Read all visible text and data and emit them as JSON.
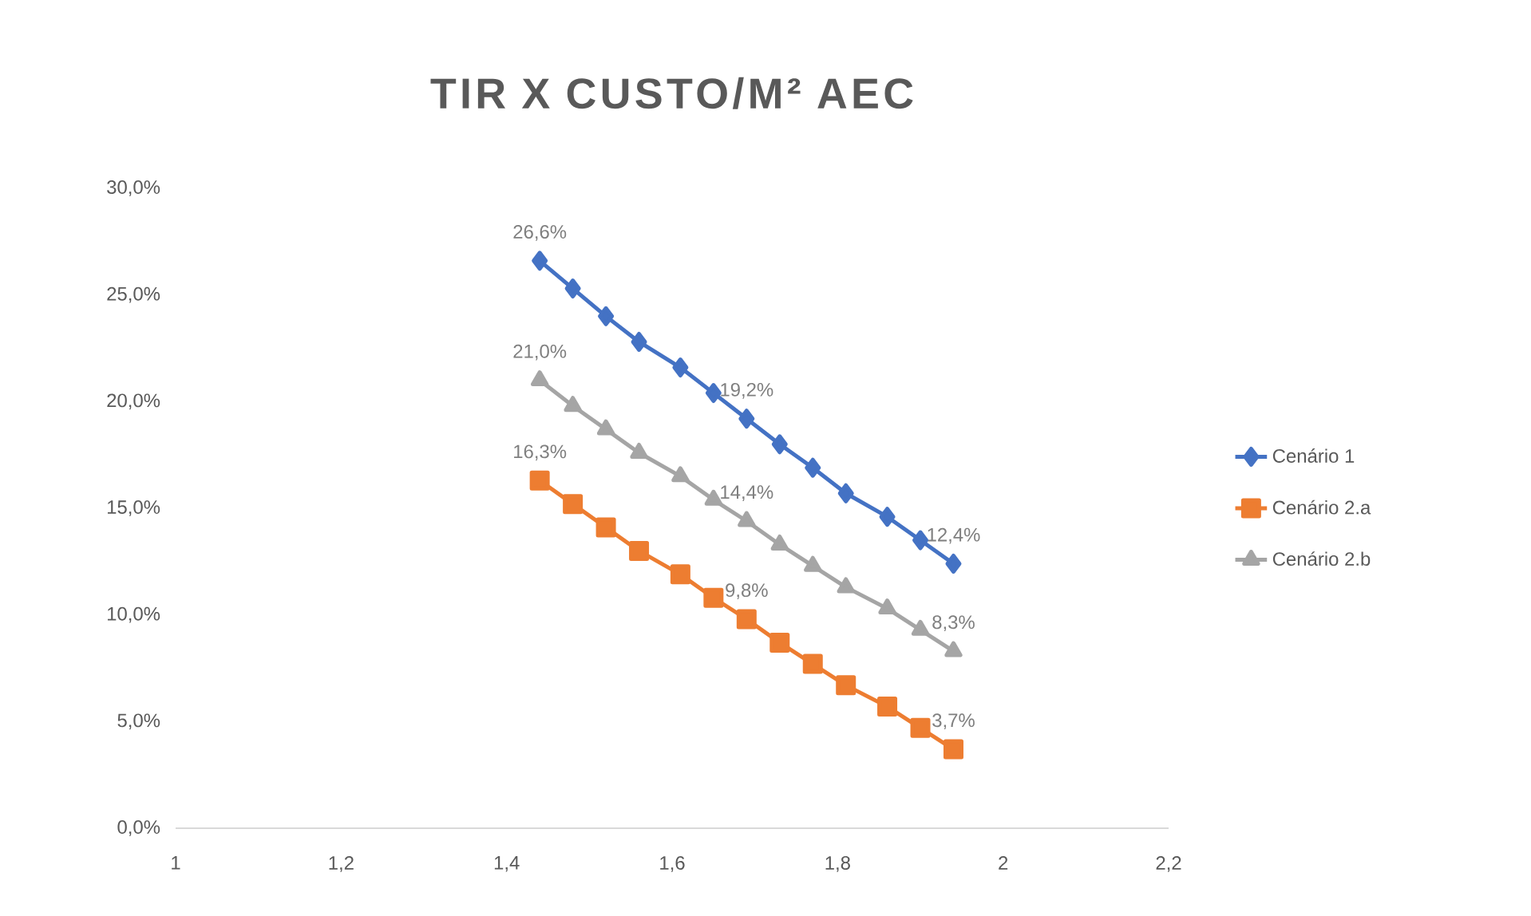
{
  "chart_data": {
    "type": "line",
    "title": "TIR X CUSTO/M² AEC",
    "x": [
      1.44,
      1.48,
      1.52,
      1.56,
      1.61,
      1.65,
      1.69,
      1.73,
      1.77,
      1.81,
      1.86,
      1.9,
      1.94
    ],
    "series": [
      {
        "name": "Cenário 1",
        "color": "#4472c4",
        "marker": "diamond",
        "values": [
          26.6,
          25.3,
          24.0,
          22.8,
          21.6,
          20.4,
          19.2,
          18.0,
          16.9,
          15.7,
          14.6,
          13.5,
          12.4
        ],
        "value_labels": [
          "26,6%",
          null,
          null,
          null,
          null,
          null,
          "19,2%",
          null,
          null,
          null,
          null,
          null,
          "12,4%"
        ]
      },
      {
        "name": "Cenário 2.a",
        "color": "#ed7d31",
        "marker": "square",
        "values": [
          16.3,
          15.2,
          14.1,
          13.0,
          11.9,
          10.8,
          9.8,
          8.7,
          7.7,
          6.7,
          5.7,
          4.7,
          3.7
        ],
        "value_labels": [
          "16,3%",
          null,
          null,
          null,
          null,
          null,
          "9,8%",
          null,
          null,
          null,
          null,
          null,
          "3,7%"
        ]
      },
      {
        "name": "Cenário 2.b",
        "color": "#a5a5a5",
        "marker": "triangle",
        "values": [
          21.0,
          19.8,
          18.7,
          17.6,
          16.5,
          15.4,
          14.4,
          13.3,
          12.3,
          11.3,
          10.3,
          9.3,
          8.3
        ],
        "value_labels": [
          "21,0%",
          null,
          null,
          null,
          null,
          null,
          "14,4%",
          null,
          null,
          null,
          null,
          null,
          "8,3%"
        ]
      }
    ],
    "xlim": [
      1,
      2.2
    ],
    "xticks": [
      1,
      {
        "value": 1.2,
        "label": "1,2"
      },
      {
        "value": 1.4,
        "label": "1,4"
      },
      {
        "value": 1.6,
        "label": "1,6"
      },
      {
        "value": 1.8,
        "label": "1,8"
      },
      2,
      {
        "value": 2.2,
        "label": "2,2"
      }
    ],
    "ylim": [
      0,
      30
    ],
    "yticks": [
      {
        "value": 0,
        "label": "0,0%"
      },
      {
        "value": 5,
        "label": "5,0%"
      },
      {
        "value": 10,
        "label": "10,0%"
      },
      {
        "value": 15,
        "label": "15,0%"
      },
      {
        "value": 20,
        "label": "20,0%"
      },
      {
        "value": 25,
        "label": "25,0%"
      },
      {
        "value": 30,
        "label": "30,0%"
      }
    ],
    "legend": "right",
    "grid": false,
    "line_style": "solid"
  }
}
